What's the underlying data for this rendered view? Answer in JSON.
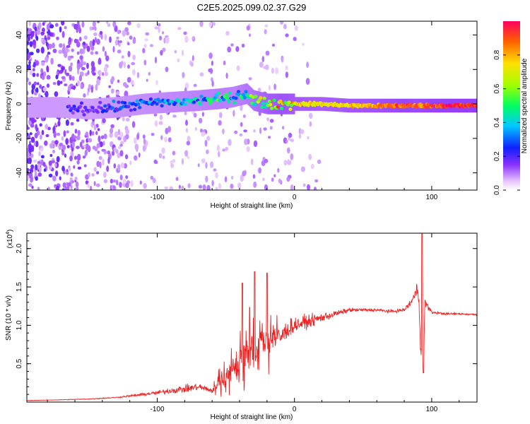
{
  "title": "C2E5.2025.099.02.37.G29",
  "chart_data": [
    {
      "type": "heatmap",
      "name": "spectrogram",
      "xlabel": "Height of straight line (km)",
      "ylabel": "Frequency (Hz)",
      "xlim": [
        -195,
        133
      ],
      "ylim": [
        -50,
        48
      ],
      "xticks": [
        -100,
        0,
        100
      ],
      "xtick_labels": [
        "-100",
        "0",
        "100"
      ],
      "yticks": [
        -40,
        -20,
        0,
        20,
        40
      ],
      "ytick_labels": [
        "-40",
        "-20",
        "0",
        "20",
        "40"
      ],
      "ridge": {
        "description": "dominant carrier trace",
        "x": [
          -170,
          -150,
          -130,
          -110,
          -90,
          -70,
          -55,
          -45,
          -35,
          -30,
          -20,
          -10,
          0,
          20,
          40,
          60,
          80,
          90,
          100,
          120,
          133
        ],
        "y": [
          -2,
          -3,
          -2,
          0,
          1,
          2,
          3,
          4,
          6,
          2,
          0,
          0,
          0,
          0,
          -1,
          -1,
          -1,
          -1,
          -1,
          -1,
          -1
        ],
        "amplitude": [
          0.25,
          0.2,
          0.3,
          0.35,
          0.4,
          0.45,
          0.5,
          0.45,
          0.55,
          0.6,
          0.75,
          0.85,
          0.8,
          0.75,
          0.8,
          0.85,
          0.95,
          0.9,
          0.97,
          1.0,
          1.0
        ]
      }
    },
    {
      "type": "colorbar",
      "name": "amplitude-colorbar",
      "label": "Normalized spectral amplitude",
      "range": [
        0,
        1
      ],
      "ticks": [
        0.0,
        0.2,
        0.4,
        0.6,
        0.8
      ],
      "tick_labels": [
        "0.0",
        "0.2",
        "0.4",
        "0.6",
        "0.8"
      ]
    },
    {
      "type": "line",
      "name": "snr",
      "xlabel": "Height of straight line (km)",
      "ylabel": "SNR (10 * v/v)",
      "exponent_label": "(x10",
      "exponent_power": "4",
      "exponent_close": ")",
      "xlim": [
        -195,
        133
      ],
      "ylim": [
        0,
        2.2
      ],
      "xticks": [
        -100,
        0,
        100
      ],
      "xtick_labels": [
        "-100",
        "0",
        "100"
      ],
      "yticks": [
        0.5,
        1.0,
        1.5,
        2.0
      ],
      "ytick_labels": [
        "0.5",
        "1.0",
        "1.5",
        "2.0"
      ],
      "color": "#ee2020",
      "series": [
        {
          "name": "SNR",
          "x": [
            -195,
            -170,
            -150,
            -140,
            -130,
            -120,
            -110,
            -100,
            -90,
            -80,
            -70,
            -60,
            -55,
            -50,
            -40,
            -35,
            -30,
            -25,
            -20,
            -15,
            -10,
            -5,
            0,
            10,
            20,
            30,
            40,
            50,
            60,
            70,
            80,
            85,
            88,
            90,
            92,
            94,
            95,
            100,
            110,
            120,
            133
          ],
          "y": [
            0.02,
            0.03,
            0.04,
            0.05,
            0.06,
            0.08,
            0.1,
            0.12,
            0.15,
            0.17,
            0.2,
            0.15,
            0.25,
            0.3,
            0.5,
            0.7,
            0.65,
            0.8,
            0.75,
            0.9,
            0.85,
            0.95,
            1.0,
            1.05,
            1.1,
            1.15,
            1.2,
            1.2,
            1.2,
            1.18,
            1.2,
            1.3,
            1.4,
            1.5,
            0.8,
            0.4,
            1.3,
            1.17,
            1.15,
            1.15,
            1.14
          ],
          "noise": [
            0.005,
            0.005,
            0.008,
            0.01,
            0.01,
            0.02,
            0.03,
            0.04,
            0.06,
            0.07,
            0.07,
            0.05,
            0.12,
            0.2,
            0.35,
            0.4,
            0.4,
            0.45,
            0.3,
            0.3,
            0.2,
            0.18,
            0.15,
            0.12,
            0.09,
            0.06,
            0.04,
            0.03,
            0.03,
            0.03,
            0.04,
            0.08,
            0.12,
            0.2,
            0.25,
            0.1,
            0.1,
            0.03,
            0.02,
            0.02,
            0.02
          ],
          "peaks": [
            {
              "x": -38,
              "y": 1.55
            },
            {
              "x": -29,
              "y": 1.7
            },
            {
              "x": -20,
              "y": 1.68
            },
            {
              "x": 93,
              "y": 2.2
            },
            {
              "x": 94,
              "y": 0.38
            }
          ]
        }
      ]
    }
  ]
}
